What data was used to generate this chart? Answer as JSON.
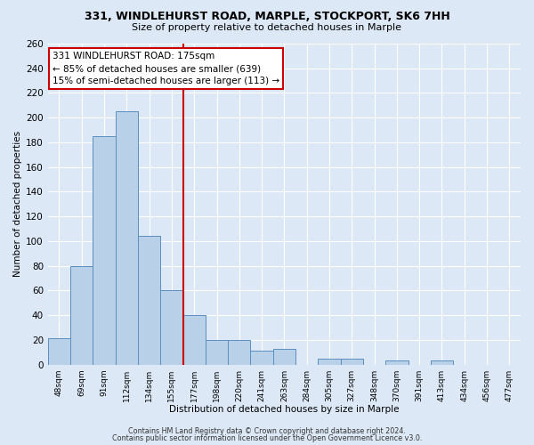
{
  "title": "331, WINDLEHURST ROAD, MARPLE, STOCKPORT, SK6 7HH",
  "subtitle": "Size of property relative to detached houses in Marple",
  "xlabel": "Distribution of detached houses by size in Marple",
  "ylabel": "Number of detached properties",
  "bar_labels": [
    "48sqm",
    "69sqm",
    "91sqm",
    "112sqm",
    "134sqm",
    "155sqm",
    "177sqm",
    "198sqm",
    "220sqm",
    "241sqm",
    "263sqm",
    "284sqm",
    "305sqm",
    "327sqm",
    "348sqm",
    "370sqm",
    "391sqm",
    "413sqm",
    "434sqm",
    "456sqm",
    "477sqm"
  ],
  "bar_values": [
    21,
    80,
    185,
    205,
    104,
    60,
    40,
    20,
    20,
    11,
    13,
    0,
    5,
    5,
    0,
    3,
    0,
    3,
    0,
    0,
    0
  ],
  "bar_color": "#b8d0e8",
  "bar_edge_color": "#5a8fc0",
  "vline_color": "#cc0000",
  "ylim": [
    0,
    260
  ],
  "yticks": [
    0,
    20,
    40,
    60,
    80,
    100,
    120,
    140,
    160,
    180,
    200,
    220,
    240,
    260
  ],
  "annotation_line1": "331 WINDLEHURST ROAD: 175sqm",
  "annotation_line2": "← 85% of detached houses are smaller (639)",
  "annotation_line3": "15% of semi-detached houses are larger (113) →",
  "annotation_box_color": "#ffffff",
  "annotation_box_edge": "#cc0000",
  "footer_line1": "Contains HM Land Registry data © Crown copyright and database right 2024.",
  "footer_line2": "Contains public sector information licensed under the Open Government Licence v3.0.",
  "background_color": "#dce8f5",
  "grid_color": "#ffffff"
}
